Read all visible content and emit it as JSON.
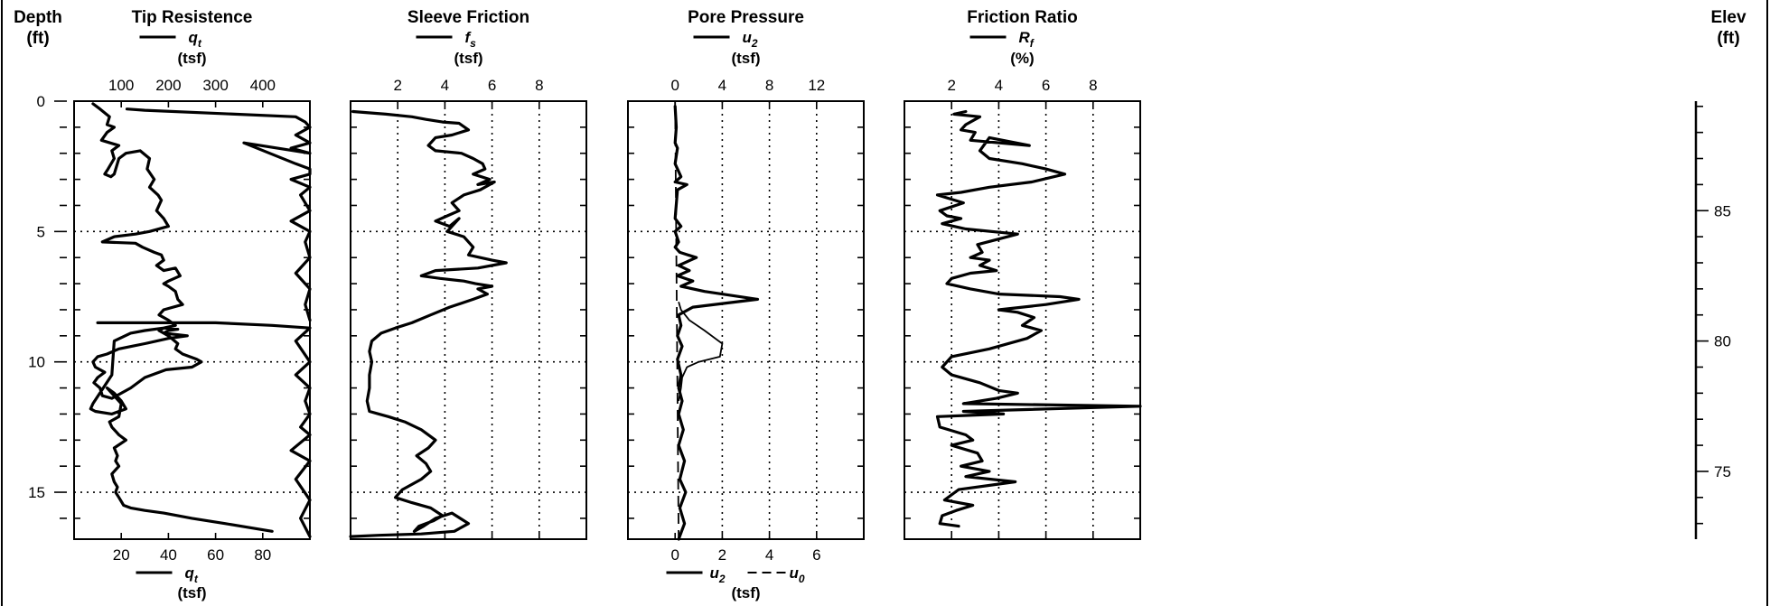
{
  "header": {
    "depth_title": "Depth",
    "depth_unit": "(ft)",
    "elev_title": "Elev",
    "elev_unit": "(ft)"
  },
  "chart_data": [
    {
      "type": "line",
      "title": "Tip Resistence",
      "symbol": "qt",
      "unit": "(tsf)",
      "xticks": [
        100,
        200,
        300,
        400
      ],
      "xlim": [
        0,
        500
      ],
      "depth_ticks": [
        0,
        5,
        10,
        15
      ],
      "ylim": [
        0,
        16.8
      ],
      "grid_x": [],
      "grid_depth": [
        5,
        10,
        15
      ],
      "bottom_axis": {
        "symbol": "qt",
        "unit": "(tsf)",
        "ticks": [
          20,
          40,
          60,
          80
        ],
        "lim": [
          0,
          100
        ]
      },
      "series": [
        {
          "style": "thick",
          "x": [
            40,
            55,
            75,
            70,
            85,
            70,
            58,
            95,
            80,
            85,
            72,
            65,
            78,
            85,
            95,
            110,
            140,
            160,
            155,
            170,
            160,
            178,
            185,
            175,
            190,
            200,
            160,
            130,
            85,
            60,
            130,
            145,
            170,
            185,
            190,
            175,
            190,
            215,
            225,
            200,
            190,
            200,
            215,
            220,
            230,
            190,
            180,
            200,
            215,
            190,
            220,
            200,
            190,
            240,
            200,
            150,
            95,
            70,
            50,
            40,
            45,
            65,
            50,
            42,
            55,
            60,
            80,
            120,
            150,
            195,
            250,
            270,
            260,
            230,
            215,
            220,
            200,
            180,
            190,
            150,
            120,
            85,
            80,
            40,
            35,
            45,
            80,
            110,
            100,
            85,
            70,
            100,
            95,
            75,
            80,
            95,
            110,
            85,
            92,
            88,
            95,
            80,
            85,
            92,
            88,
            95,
            105,
            120,
            150,
            190,
            250,
            320,
            420
          ],
          "y": [
            0.1,
            0.3,
            0.6,
            0.9,
            1.0,
            1.2,
            1.5,
            1.7,
            1.9,
            2.2,
            2.6,
            2.8,
            2.9,
            2.8,
            2.2,
            2.0,
            1.9,
            2.2,
            2.6,
            3.0,
            3.3,
            3.6,
            3.8,
            4.2,
            4.5,
            4.8,
            5.0,
            5.1,
            5.2,
            5.4,
            5.45,
            5.6,
            5.8,
            5.9,
            6.1,
            6.3,
            6.5,
            6.4,
            6.7,
            6.9,
            7.0,
            7.1,
            7.3,
            7.6,
            7.8,
            8.0,
            8.2,
            8.4,
            8.6,
            8.7,
            8.75,
            8.8,
            8.9,
            9.0,
            9.1,
            9.3,
            9.5,
            9.7,
            9.8,
            10.0,
            10.2,
            10.4,
            10.6,
            10.8,
            11.0,
            11.3,
            11.4,
            11.0,
            10.6,
            10.3,
            10.2,
            10.0,
            9.9,
            9.7,
            9.5,
            9.3,
            9.0,
            8.8,
            8.7,
            8.8,
            8.9,
            9.2,
            10.5,
            11.6,
            11.8,
            11.9,
            12.0,
            11.8,
            11.5,
            11.2,
            11.0,
            11.6,
            12.1,
            12.3,
            12.5,
            12.8,
            13.0,
            13.3,
            13.6,
            13.8,
            14.0,
            14.3,
            14.6,
            14.8,
            15.0,
            15.2,
            15.5,
            15.6,
            15.7,
            15.8,
            16.0,
            16.2,
            16.5
          ]
        },
        {
          "style": "thick",
          "x": [
            112,
            150,
            470,
            490,
            500,
            470,
            500,
            460,
            500,
            360,
            470,
            500,
            500,
            460,
            500,
            480,
            500,
            460,
            500,
            490,
            500,
            470,
            500,
            490,
            500
          ],
          "y": [
            0.3,
            0.35,
            0.6,
            0.8,
            1.0,
            1.3,
            1.6,
            1.8,
            2.0,
            1.6,
            2.4,
            2.6,
            2.8,
            3.0,
            3.3,
            3.6,
            4.2,
            4.6,
            5.0,
            5.4,
            6.0,
            6.6,
            7.2,
            7.8,
            8.4
          ]
        },
        {
          "style": "thick",
          "x": [
            50,
            300,
            420,
            500,
            470,
            500,
            470,
            500,
            490,
            500,
            480,
            500,
            460,
            500,
            470,
            500,
            480,
            500
          ],
          "y": [
            8.5,
            8.5,
            8.6,
            8.7,
            9.2,
            10.0,
            10.5,
            11.0,
            11.5,
            12.0,
            12.5,
            12.8,
            13.4,
            13.8,
            14.5,
            15.3,
            16.0,
            16.7
          ]
        }
      ]
    },
    {
      "type": "line",
      "title": "Sleeve Friction",
      "symbol": "fs",
      "unit": "(tsf)",
      "xticks": [
        2,
        4,
        6,
        8
      ],
      "xlim": [
        0,
        10
      ],
      "ylim": [
        0,
        16.8
      ],
      "grid_x": [
        2,
        4,
        6,
        8
      ],
      "grid_depth": [
        5,
        10,
        15
      ],
      "series": [
        {
          "style": "thick",
          "x": [
            0.1,
            1.5,
            2.6,
            3.2,
            3.9,
            4.6,
            5.0,
            4.3,
            3.6,
            3.3,
            3.6,
            4.7,
            5.2,
            5.6,
            5.7,
            5.2,
            5.9,
            5.4,
            6.1,
            5.5,
            4.8,
            4.3,
            4.6,
            4.1,
            3.6,
            4.2,
            4.6,
            4.3,
            4.1,
            4.8,
            5.2,
            5.0,
            6.0,
            6.6,
            5.4,
            3.6,
            3.0,
            3.8,
            4.8,
            5.3,
            6.0,
            5.4,
            5.8,
            5.2,
            4.2,
            3.4,
            2.6,
            1.9,
            1.3,
            0.9,
            0.8,
            0.9,
            0.8,
            0.8,
            0.7,
            0.8,
            1.2,
            1.6,
            2.3,
            3.0,
            3.6,
            3.3,
            2.8,
            3.2,
            3.4,
            3.0,
            2.2,
            1.9,
            2.6,
            3.4,
            3.9,
            3.5,
            2.9,
            2.7,
            3.1,
            3.6,
            4.3,
            5.0,
            4.4,
            3.0,
            1.2,
            0.0
          ],
          "y": [
            0.4,
            0.5,
            0.6,
            0.7,
            0.8,
            0.85,
            1.1,
            1.3,
            1.4,
            1.7,
            1.9,
            2.0,
            2.2,
            2.4,
            2.6,
            2.8,
            3.0,
            3.2,
            3.1,
            3.4,
            3.6,
            3.9,
            4.2,
            4.4,
            4.6,
            4.8,
            4.5,
            4.8,
            5.0,
            5.2,
            5.6,
            5.9,
            6.1,
            6.2,
            6.4,
            6.5,
            6.7,
            6.8,
            6.9,
            7.0,
            7.1,
            7.2,
            7.4,
            7.6,
            7.9,
            8.2,
            8.5,
            8.7,
            8.9,
            9.2,
            9.6,
            10.0,
            10.5,
            11.0,
            11.5,
            11.9,
            12.0,
            12.1,
            12.3,
            12.6,
            13.0,
            13.3,
            13.6,
            13.9,
            14.2,
            14.5,
            14.9,
            15.2,
            15.4,
            15.6,
            15.9,
            16.1,
            16.3,
            16.5,
            16.3,
            16.0,
            15.8,
            16.2,
            16.5,
            16.6,
            16.65,
            16.7
          ]
        }
      ]
    },
    {
      "type": "line",
      "title": "Pore Pressure",
      "symbol": "u2",
      "unit": "(tsf)",
      "xticks": [
        0,
        4,
        8,
        12
      ],
      "xlim": [
        -4,
        16
      ],
      "ylim": [
        0,
        16.8
      ],
      "grid_x": [
        4,
        8,
        12
      ],
      "grid_depth": [
        5,
        10,
        15
      ],
      "bottom_axis": {
        "symbols": [
          "u2",
          "u0"
        ],
        "unit": "(tsf)",
        "ticks": [
          0,
          2,
          4,
          6
        ],
        "lim": [
          -2,
          8
        ]
      },
      "series": [
        {
          "style": "thick",
          "x": [
            0,
            0.1,
            0,
            0.2,
            0,
            0.5,
            0,
            1.0,
            0.2,
            0,
            0.5,
            0,
            0.3,
            0,
            0.4,
            1.8,
            0.3,
            1.2,
            0.2,
            1.5,
            0.5,
            2.5,
            7.0,
            1.5,
            0.3,
            0.5,
            0.2,
            0.6,
            0.2,
            0.5,
            0.3,
            0.6,
            0.3,
            0.7,
            0.3,
            0.8,
            0.4,
            0.9,
            0.4,
            0.8,
            0.3
          ],
          "y": [
            0.2,
            1.0,
            1.6,
            1.8,
            2.4,
            2.9,
            3.1,
            3.2,
            3.4,
            4.5,
            4.8,
            5.0,
            5.4,
            5.6,
            5.8,
            6.0,
            6.3,
            6.5,
            6.7,
            6.9,
            7.1,
            7.3,
            7.6,
            7.9,
            8.2,
            8.6,
            9.0,
            9.4,
            9.9,
            10.5,
            11.0,
            11.5,
            12.0,
            12.6,
            13.2,
            13.8,
            14.5,
            15.0,
            15.6,
            16.2,
            16.8
          ]
        },
        {
          "style": "thin",
          "x": [
            0.3,
            0.5,
            1.2,
            2.5,
            4.0,
            3.8,
            2.0,
            1.0,
            0.6,
            0.5,
            0.3
          ],
          "y": [
            7.7,
            8.0,
            8.4,
            8.8,
            9.3,
            9.8,
            10.0,
            10.2,
            10.6,
            11.0,
            11.5
          ]
        },
        {
          "style": "dashed",
          "x": [
            0,
            0.3
          ],
          "y": [
            0,
            16.8
          ]
        }
      ]
    },
    {
      "type": "line",
      "title": "Friction Ratio",
      "symbol": "Rf",
      "unit": "(%)",
      "xticks": [
        2,
        4,
        6,
        8
      ],
      "xlim": [
        0,
        10
      ],
      "ylim": [
        0,
        16.8
      ],
      "grid_x": [
        2,
        4,
        6,
        8
      ],
      "grid_depth": [
        5,
        10,
        15
      ],
      "series": [
        {
          "style": "thick",
          "x": [
            2.6,
            2.1,
            3.2,
            2.6,
            2.4,
            3.0,
            2.8,
            5.3,
            3.6,
            3.2,
            3.6,
            5.0,
            6.0,
            6.8,
            5.4,
            3.6,
            2.4,
            1.4,
            2.5,
            1.5,
            1.8,
            2.4,
            1.6,
            2.6,
            4.8,
            3.1,
            3.3,
            2.8,
            3.6,
            3.2,
            3.9,
            2.8,
            2.0,
            1.8,
            2.8,
            4.0,
            6.6,
            7.4,
            6.0,
            4.0,
            4.8,
            5.5,
            5.0,
            5.8,
            5.2,
            3.6,
            2.0,
            1.6,
            2.0,
            3.2,
            4.0,
            4.8,
            3.9,
            2.5,
            10,
            2.5,
            4.2,
            1.4,
            1.5,
            2.6,
            2.9,
            2.0,
            3.1,
            3.3,
            2.4,
            3.6,
            2.6,
            4.7,
            2.3,
            2.0,
            1.7,
            2.9,
            2.2,
            1.6,
            1.5,
            2.3
          ],
          "y": [
            0.4,
            0.5,
            0.6,
            0.9,
            1.1,
            1.2,
            1.5,
            1.7,
            1.4,
            1.9,
            2.2,
            2.4,
            2.6,
            2.8,
            3.1,
            3.3,
            3.5,
            3.6,
            3.9,
            4.2,
            4.4,
            4.5,
            4.7,
            4.9,
            5.1,
            5.5,
            5.8,
            6.0,
            6.1,
            6.3,
            6.5,
            6.6,
            6.8,
            7.0,
            7.2,
            7.4,
            7.5,
            7.6,
            7.8,
            8.0,
            8.1,
            8.3,
            8.6,
            8.8,
            9.1,
            9.5,
            9.8,
            10.2,
            10.5,
            10.8,
            11.1,
            11.2,
            11.4,
            11.6,
            11.7,
            11.9,
            12.0,
            12.1,
            12.5,
            12.8,
            13.0,
            13.2,
            13.5,
            13.8,
            14.0,
            14.2,
            14.4,
            14.6,
            14.9,
            15.1,
            15.3,
            15.5,
            15.7,
            15.9,
            16.2,
            16.3
          ]
        }
      ]
    },
    {
      "type": "line",
      "title": "Elev",
      "unit": "(ft)",
      "axis_ticks": [
        85,
        80,
        75
      ],
      "axis_lim_depth": [
        0,
        16.8
      ],
      "elev_at_depth_0": 89.2
    }
  ]
}
